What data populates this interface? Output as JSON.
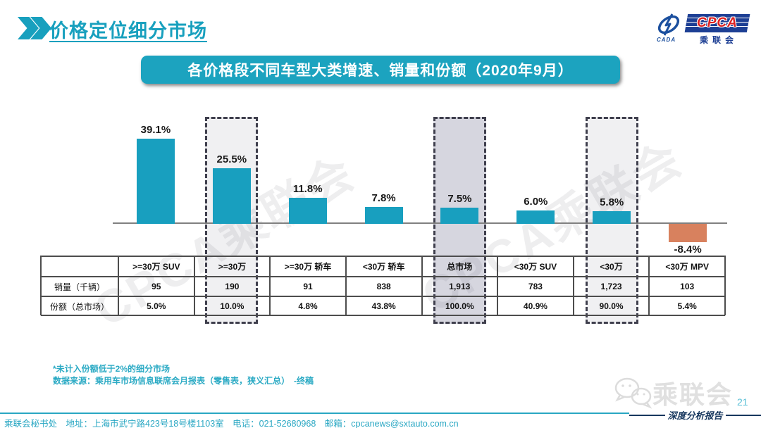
{
  "header": {
    "title": "价格定位细分市场",
    "logo": {
      "cpca": "CPCA",
      "cada": "CADA",
      "name_cn": "乘联会"
    }
  },
  "banner": {
    "text": "各价格段不同车型大类增速、销量和份额（2020年9月）"
  },
  "chart_data": {
    "type": "bar",
    "title": "各价格段不同车型大类增速、销量和份额（2020年9月）",
    "categories": [
      ">=30万 SUV",
      ">=30万",
      ">=30万 轿车",
      "<30万 轿车",
      "总市场",
      "<30万 SUV",
      "<30万",
      "<30万 MPV"
    ],
    "values": [
      39.1,
      25.5,
      11.8,
      7.8,
      7.5,
      6.0,
      5.8,
      -8.4
    ],
    "labels": [
      "39.1%",
      "25.5%",
      "11.8%",
      "7.8%",
      "7.5%",
      "6.0%",
      "5.8%",
      "-8.4%"
    ],
    "row_headers": [
      "销量（千辆）",
      "份额（总市场）"
    ],
    "sales_thousand": [
      "95",
      "190",
      "91",
      "838",
      "1,913",
      "783",
      "1,723",
      "103"
    ],
    "share_of_total": [
      "5.0%",
      "10.0%",
      "4.8%",
      "43.8%",
      "100.0%",
      "40.9%",
      "90.0%",
      "5.4%"
    ],
    "highlighted_columns": [
      1,
      4,
      6
    ],
    "highlight_fills": [
      "rgba(110,110,130,0.10)",
      "rgba(85,85,120,0.24)",
      "rgba(110,110,130,0.10)"
    ],
    "bar_color": "#189FBF",
    "negative_bar_color": "#D8815E",
    "ylim": [
      -10,
      42
    ],
    "grid": false,
    "legend": "none"
  },
  "footnotes": {
    "line1": "*未计入份额低于2%的细分市场",
    "line2": "数据来源：乘用车市场信息联席会月报表（零售表，狭义汇总）　-终稿"
  },
  "footer": {
    "text": "乘联会秘书处　地址：上海市武宁路423号18号楼1103室　电话：021-52680968　邮箱：cpcanews@sxtauto.com.cn",
    "page_number": "21",
    "report_label": "深度分析报告",
    "corner_watermark": "乘联会"
  },
  "watermark": {
    "text": "CPCA乘联会"
  }
}
